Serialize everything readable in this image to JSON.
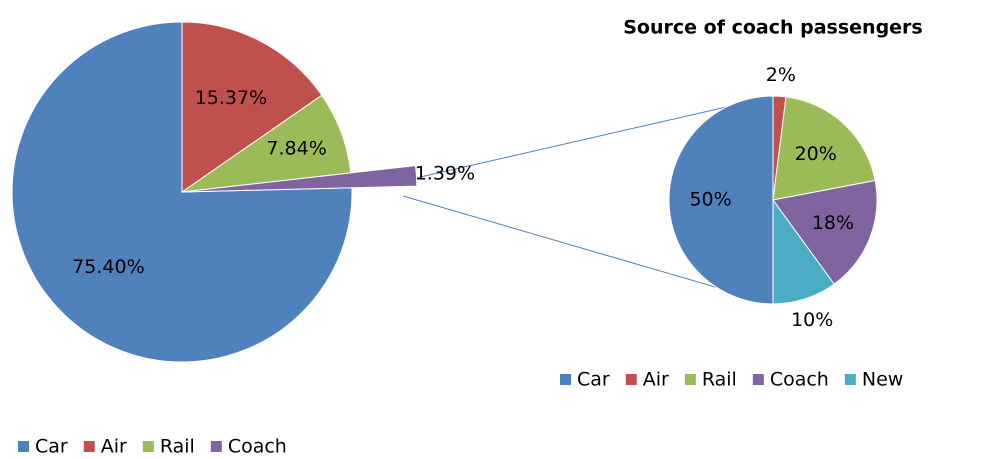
{
  "chart_data": [
    {
      "type": "pie",
      "categories": [
        "Car",
        "Air",
        "Rail",
        "Coach"
      ],
      "values": [
        75.4,
        15.37,
        7.84,
        1.39
      ],
      "value_labels": [
        "75.40%",
        "15.37%",
        "7.84%",
        "1.39%"
      ],
      "colors": [
        "#4f81bd",
        "#c0504d",
        "#9bbb59",
        "#8064a2"
      ],
      "legend": "bottom-left"
    },
    {
      "type": "pie",
      "title": "Source of coach passengers",
      "categories": [
        "Car",
        "Air",
        "Rail",
        "Coach",
        "New"
      ],
      "values": [
        50,
        2,
        20,
        18,
        10
      ],
      "value_labels": [
        "50%",
        "2%",
        "20%",
        "18%",
        "10%"
      ],
      "colors": [
        "#4f81bd",
        "#c0504d",
        "#9bbb59",
        "#8064a2",
        "#4bacc6"
      ],
      "legend": "bottom-right"
    }
  ]
}
